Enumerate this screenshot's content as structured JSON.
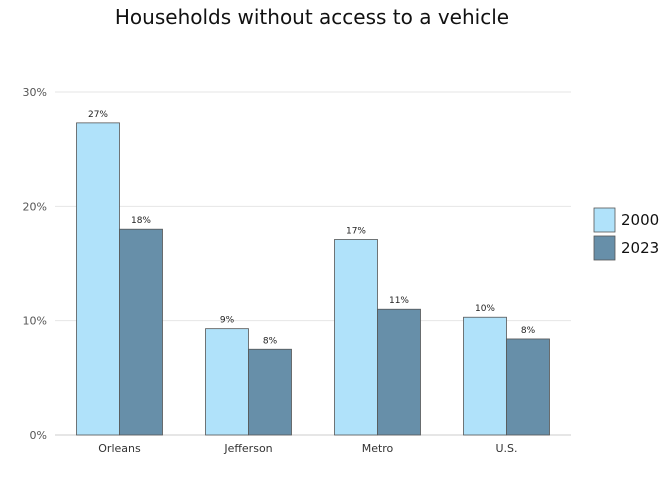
{
  "chart_data": {
    "type": "bar",
    "title": "Households without access to a vehicle",
    "xlabel": "",
    "ylabel": "",
    "categories": [
      "Orleans",
      "Jefferson",
      "Metro",
      "U.S."
    ],
    "series": [
      {
        "name": "2000",
        "values": [
          27.3,
          9.3,
          17.1,
          10.3
        ],
        "labels": [
          "27%",
          "9%",
          "17%",
          "10%"
        ],
        "color": "#b0e2fa"
      },
      {
        "name": "2023",
        "values": [
          18.0,
          7.5,
          11.0,
          8.4
        ],
        "labels": [
          "18%",
          "8%",
          "11%",
          "8%"
        ],
        "color": "#678fa9"
      }
    ],
    "ylim": [
      0,
      30
    ],
    "yticks": [
      0,
      10,
      20,
      30
    ],
    "ytick_labels": [
      "0%",
      "10%",
      "20%",
      "30%"
    ],
    "grid": true,
    "legend_position": "right"
  }
}
